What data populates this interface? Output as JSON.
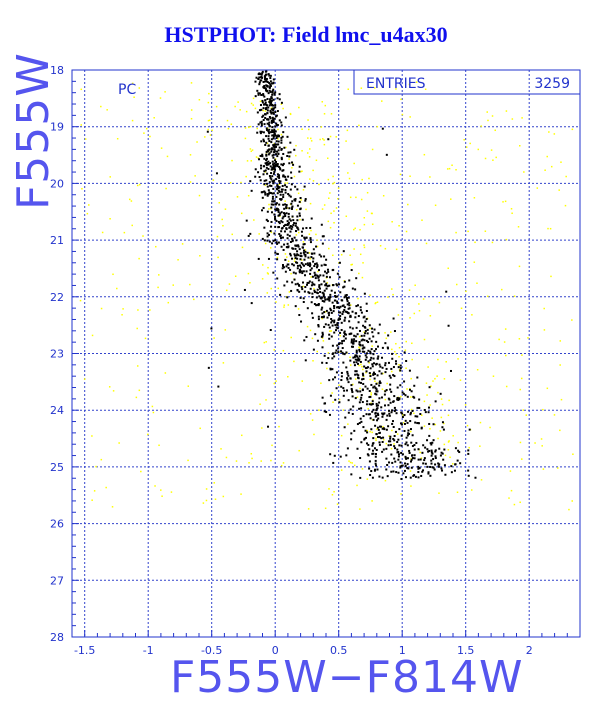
{
  "title": "HSTPHOT: Field lmc_u4ax30",
  "chart_data": {
    "type": "scatter",
    "title": "HSTPHOT: Field lmc_u4ax30",
    "xlabel": "F555W−F814W",
    "ylabel": "F555W",
    "xlim": [
      -1.6,
      2.4
    ],
    "ylim": [
      28,
      18
    ],
    "y_inverted": true,
    "grid": true,
    "x_ticks": [
      "-1.5",
      "-1",
      "-0.5",
      "0",
      "0.5",
      "1",
      "1.5",
      "2"
    ],
    "x_tick_values": [
      -1.5,
      -1,
      -0.5,
      0,
      0.5,
      1,
      1.5,
      2
    ],
    "y_ticks": [
      "18",
      "19",
      "20",
      "21",
      "22",
      "23",
      "24",
      "25",
      "26",
      "27",
      "28"
    ],
    "y_tick_values": [
      18,
      19,
      20,
      21,
      22,
      23,
      24,
      25,
      26,
      27,
      28
    ],
    "region_label": "PC",
    "stats_box": {
      "label": "ENTRIES",
      "value": "3259"
    },
    "series": [
      {
        "color": "#ffff00",
        "description": "background field stars"
      },
      {
        "color": "#000000",
        "description": "main sequence / giant branch stars"
      }
    ],
    "ridge_line": [
      [
        -0.1,
        18.0
      ],
      [
        -0.05,
        18.8
      ],
      [
        -0.02,
        19.5
      ],
      [
        0.0,
        20.0
      ],
      [
        0.05,
        20.5
      ],
      [
        0.12,
        21.0
      ],
      [
        0.25,
        21.5
      ],
      [
        0.4,
        22.0
      ],
      [
        0.52,
        22.5
      ],
      [
        0.65,
        23.0
      ],
      [
        0.75,
        23.5
      ],
      [
        0.85,
        24.0
      ],
      [
        0.95,
        24.5
      ],
      [
        1.05,
        25.0
      ]
    ]
  }
}
